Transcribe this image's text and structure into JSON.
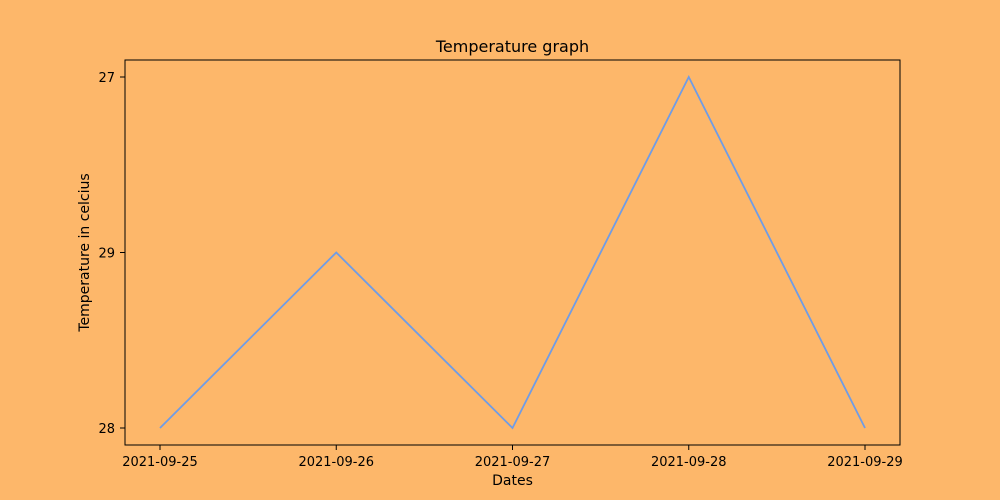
{
  "colors": {
    "background": "#fdb76a",
    "plot_background": "#fdb76a",
    "line": "#6f9ce6",
    "axes": "#000000"
  },
  "chart_data": {
    "type": "line",
    "title": "Temperature graph",
    "xlabel": "Dates",
    "ylabel": "Temperature in celcius",
    "x_axis": "categorical",
    "y_axis": "categorical",
    "categories": [
      "2021-09-25",
      "2021-09-26",
      "2021-09-27",
      "2021-09-28",
      "2021-09-29"
    ],
    "y_categories_bottom_to_top": [
      "28",
      "29",
      "27"
    ],
    "series": [
      {
        "values": [
          "28",
          "29",
          "28",
          "27",
          "28"
        ]
      }
    ],
    "grid": false,
    "legend": "none"
  }
}
